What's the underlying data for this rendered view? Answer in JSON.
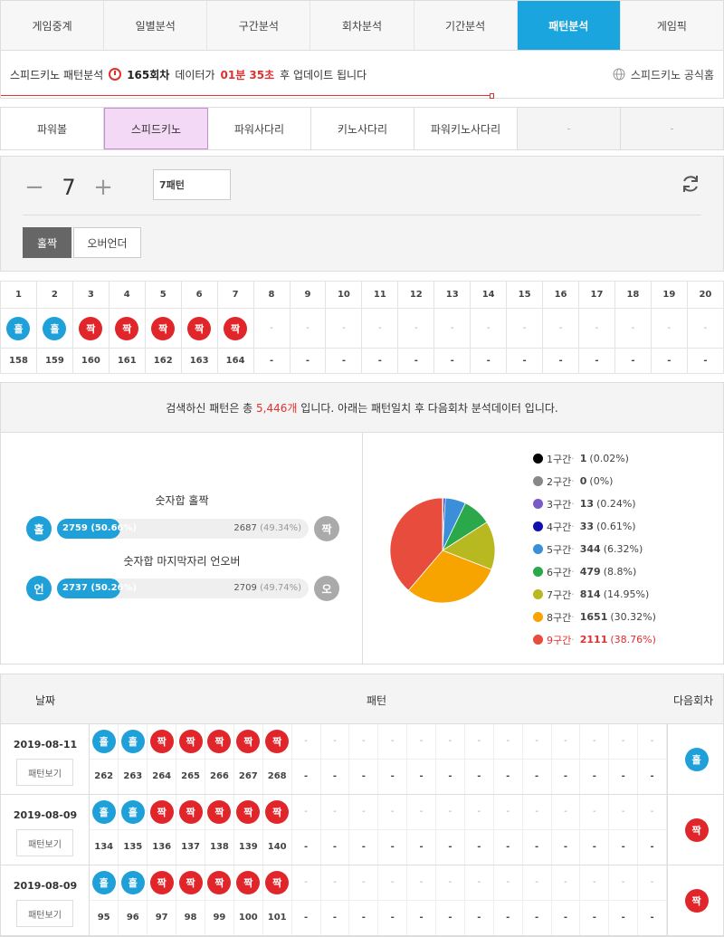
{
  "nav_tabs": [
    {
      "label": "게임중계",
      "active": false
    },
    {
      "label": "일별분석",
      "active": false
    },
    {
      "label": "구간분석",
      "active": false
    },
    {
      "label": "회차분석",
      "active": false
    },
    {
      "label": "기간분석",
      "active": false
    },
    {
      "label": "패턴분석",
      "active": true
    },
    {
      "label": "게임픽",
      "active": false
    }
  ],
  "status": {
    "prefix": "스피드키노 패턴분석",
    "round": "165회차",
    "middle": "데이터가",
    "time": "01분 35초",
    "suffix": "후 업데이트 됩니다",
    "official_link": "스피드키노 공식홈"
  },
  "game_tabs": [
    {
      "label": "파워볼",
      "state": "normal"
    },
    {
      "label": "스피드키노",
      "state": "active"
    },
    {
      "label": "파워사다리",
      "state": "normal"
    },
    {
      "label": "키노사다리",
      "state": "normal"
    },
    {
      "label": "파워키노사다리",
      "state": "normal"
    },
    {
      "label": "-",
      "state": "disabled"
    },
    {
      "label": "-",
      "state": "disabled"
    }
  ],
  "controls": {
    "minus": "−",
    "count": "7",
    "plus": "+",
    "pattern_select": "7패턴",
    "buttons": [
      "홀짝",
      "오버언더"
    ]
  },
  "pattern_grid": {
    "columns": [
      "1",
      "2",
      "3",
      "4",
      "5",
      "6",
      "7",
      "8",
      "9",
      "10",
      "11",
      "12",
      "13",
      "14",
      "15",
      "16",
      "17",
      "18",
      "19",
      "20"
    ],
    "balls": [
      "홀",
      "홀",
      "짝",
      "짝",
      "짝",
      "짝",
      "짝",
      "-",
      "-",
      "-",
      "-",
      "-",
      "-",
      "-",
      "-",
      "-",
      "-",
      "-",
      "-",
      "-"
    ],
    "rounds": [
      "158",
      "159",
      "160",
      "161",
      "162",
      "163",
      "164",
      "-",
      "-",
      "-",
      "-",
      "-",
      "-",
      "-",
      "-",
      "-",
      "-",
      "-",
      "-",
      "-"
    ]
  },
  "summary": {
    "before": "검색하신 패턴은 총",
    "count": "5,446개",
    "after": "입니다. 아래는 패턴일치 후 다음회차 분석데이터 입니다."
  },
  "odd_even": {
    "title": "숫자합 홀짝",
    "left_ball": "홀",
    "right_ball": "짝",
    "left_text": "2759 (50.66%)",
    "right_count": "2687",
    "right_pct": "(49.34%)",
    "fraction": 0.5066
  },
  "under_over": {
    "title": "숫자합 마지막자리 언오버",
    "left_ball": "언",
    "right_ball": "오",
    "left_text": "2737 (50.26%)",
    "right_count": "2709",
    "right_pct": "(49.74%)",
    "fraction": 0.5026
  },
  "chart_data": {
    "type": "pie",
    "categories": [
      "1구간",
      "2구간",
      "3구간",
      "4구간",
      "5구간",
      "6구간",
      "7구간",
      "8구간",
      "9구간"
    ],
    "values": [
      1,
      0,
      13,
      33,
      344,
      479,
      814,
      1651,
      2111
    ],
    "percents": [
      "(0.02%)",
      "(0%)",
      "(0.24%)",
      "(0.61%)",
      "(6.32%)",
      "(8.8%)",
      "(14.95%)",
      "(30.32%)",
      "(38.76%)"
    ],
    "colors": [
      "#000000",
      "#888888",
      "#7a5ac8",
      "#1010b0",
      "#3a8fd8",
      "#2aa84a",
      "#b8b820",
      "#f7a300",
      "#e84c3d"
    ],
    "legend": "right",
    "highlight": "9구간"
  },
  "history": {
    "headers": {
      "date": "날짜",
      "pattern": "패턴",
      "next": "다음회차"
    },
    "view_label": "패턴보기",
    "rows": [
      {
        "date": "2019-08-11",
        "balls": [
          "홀",
          "홀",
          "짝",
          "짝",
          "짝",
          "짝",
          "짝",
          "-",
          "-",
          "-",
          "-",
          "-",
          "-",
          "-",
          "-",
          "-",
          "-",
          "-",
          "-",
          "-"
        ],
        "rounds": [
          "262",
          "263",
          "264",
          "265",
          "266",
          "267",
          "268",
          "-",
          "-",
          "-",
          "-",
          "-",
          "-",
          "-",
          "-",
          "-",
          "-",
          "-",
          "-",
          "-"
        ],
        "next": "홀"
      },
      {
        "date": "2019-08-09",
        "balls": [
          "홀",
          "홀",
          "짝",
          "짝",
          "짝",
          "짝",
          "짝",
          "-",
          "-",
          "-",
          "-",
          "-",
          "-",
          "-",
          "-",
          "-",
          "-",
          "-",
          "-",
          "-"
        ],
        "rounds": [
          "134",
          "135",
          "136",
          "137",
          "138",
          "139",
          "140",
          "-",
          "-",
          "-",
          "-",
          "-",
          "-",
          "-",
          "-",
          "-",
          "-",
          "-",
          "-",
          "-"
        ],
        "next": "짝"
      },
      {
        "date": "2019-08-09",
        "balls": [
          "홀",
          "홀",
          "짝",
          "짝",
          "짝",
          "짝",
          "짝",
          "-",
          "-",
          "-",
          "-",
          "-",
          "-",
          "-",
          "-",
          "-",
          "-",
          "-",
          "-",
          "-"
        ],
        "rounds": [
          "95",
          "96",
          "97",
          "98",
          "99",
          "100",
          "101",
          "-",
          "-",
          "-",
          "-",
          "-",
          "-",
          "-",
          "-",
          "-",
          "-",
          "-",
          "-",
          "-"
        ],
        "next": "짝"
      }
    ]
  }
}
